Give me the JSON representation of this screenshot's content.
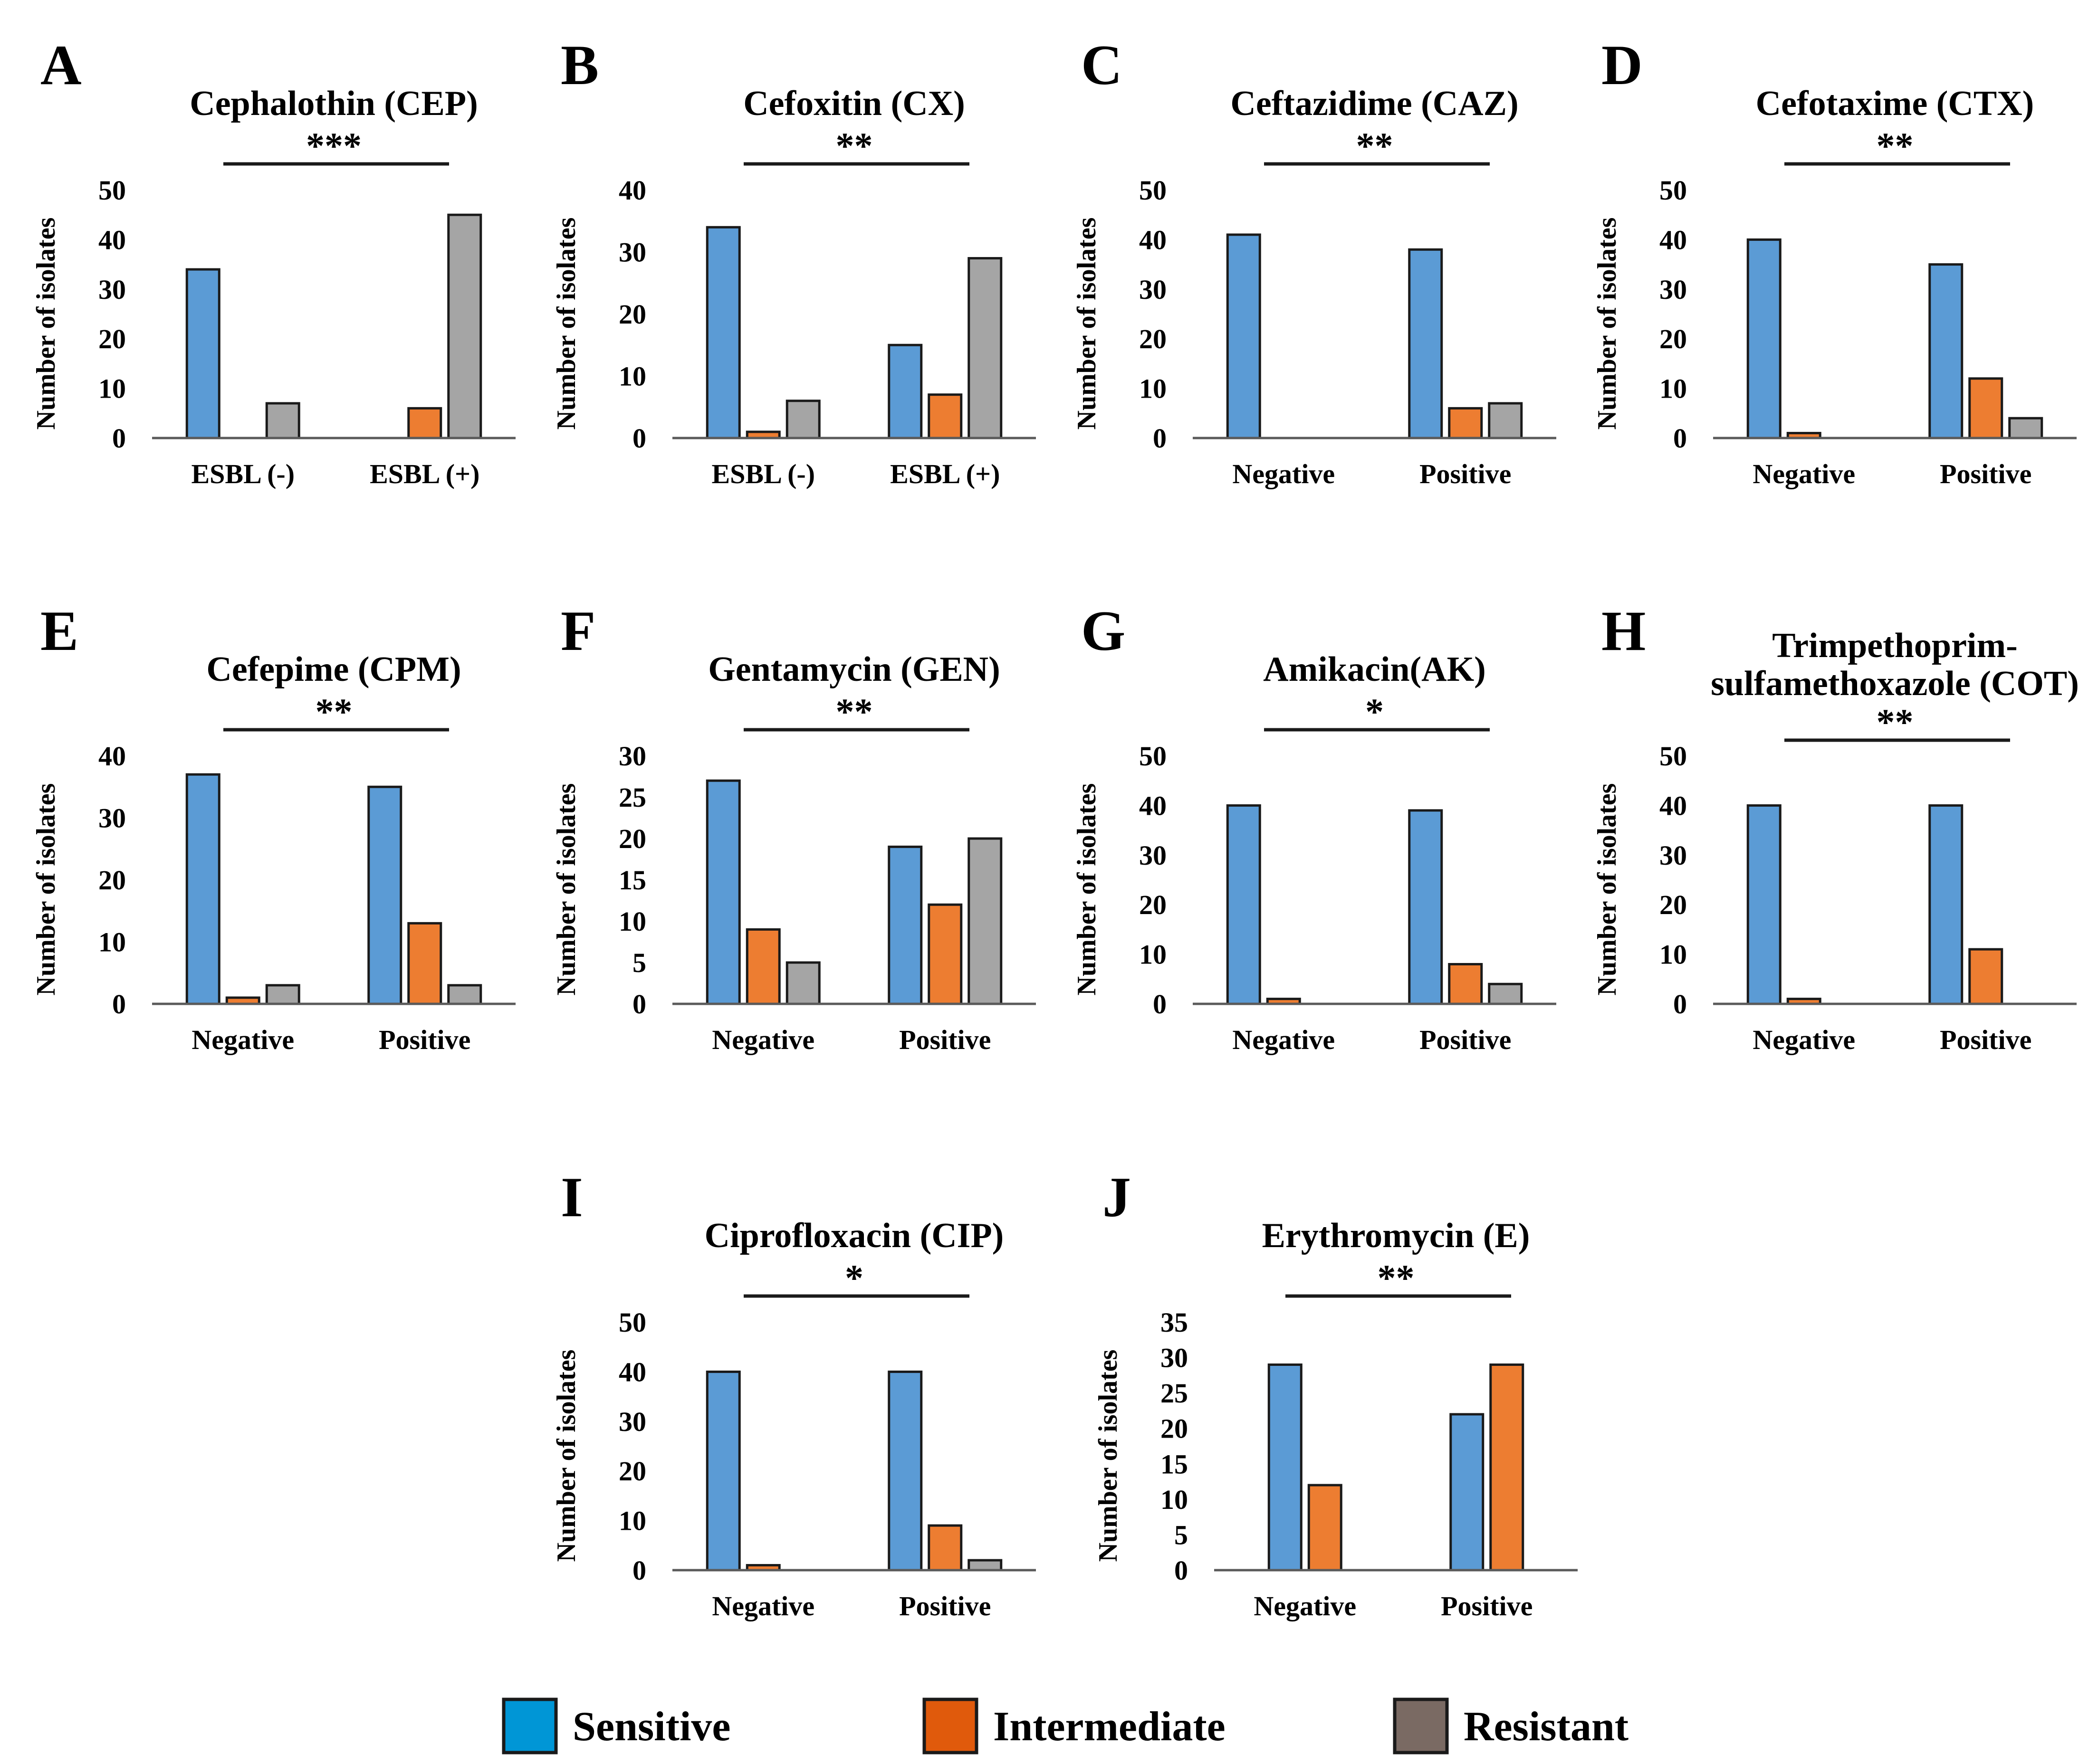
{
  "chart_data": [
    {
      "letter": "A",
      "title": [
        "Cephalothin (CEP)"
      ],
      "significance": "***",
      "type": "bar",
      "categories": [
        "ESBL (-)",
        "ESBL (+)"
      ],
      "ylabel": "Number of isolates",
      "ylim": [
        0,
        50
      ],
      "yticks": [
        0,
        10,
        20,
        30,
        40,
        50
      ],
      "series": [
        {
          "name": "Sensitive",
          "values": [
            34,
            0
          ]
        },
        {
          "name": "Intermediate",
          "values": [
            0,
            6
          ]
        },
        {
          "name": "Resistant",
          "values": [
            7,
            45
          ]
        }
      ]
    },
    {
      "letter": "B",
      "title": [
        "Cefoxitin (CX)"
      ],
      "significance": "**",
      "type": "bar",
      "categories": [
        "ESBL (-)",
        "ESBL (+)"
      ],
      "ylabel": "Number of isolates",
      "ylim": [
        0,
        40
      ],
      "yticks": [
        0,
        10,
        20,
        30,
        40
      ],
      "series": [
        {
          "name": "Sensitive",
          "values": [
            34,
            15
          ]
        },
        {
          "name": "Intermediate",
          "values": [
            1,
            7
          ]
        },
        {
          "name": "Resistant",
          "values": [
            6,
            29
          ]
        }
      ]
    },
    {
      "letter": "C",
      "title": [
        "Ceftazidime (CAZ)"
      ],
      "significance": "**",
      "type": "bar",
      "categories": [
        "Negative",
        "Positive"
      ],
      "ylabel": "Number of isolates",
      "ylim": [
        0,
        50
      ],
      "yticks": [
        0,
        10,
        20,
        30,
        40,
        50
      ],
      "series": [
        {
          "name": "Sensitive",
          "values": [
            41,
            38
          ]
        },
        {
          "name": "Intermediate",
          "values": [
            0,
            6
          ]
        },
        {
          "name": "Resistant",
          "values": [
            0,
            7
          ]
        }
      ]
    },
    {
      "letter": "D",
      "title": [
        "Cefotaxime (CTX)"
      ],
      "significance": "**",
      "type": "bar",
      "categories": [
        "Negative",
        "Positive"
      ],
      "ylabel": "Number of isolates",
      "ylim": [
        0,
        50
      ],
      "yticks": [
        0,
        10,
        20,
        30,
        40,
        50
      ],
      "series": [
        {
          "name": "Sensitive",
          "values": [
            40,
            35
          ]
        },
        {
          "name": "Intermediate",
          "values": [
            1,
            12
          ]
        },
        {
          "name": "Resistant",
          "values": [
            0,
            4
          ]
        }
      ]
    },
    {
      "letter": "E",
      "title": [
        "Cefepime (CPM)"
      ],
      "significance": "**",
      "type": "bar",
      "categories": [
        "Negative",
        "Positive"
      ],
      "ylabel": "Number of isolates",
      "ylim": [
        0,
        40
      ],
      "yticks": [
        0,
        10,
        20,
        30,
        40
      ],
      "series": [
        {
          "name": "Sensitive",
          "values": [
            37,
            35
          ]
        },
        {
          "name": "Intermediate",
          "values": [
            1,
            13
          ]
        },
        {
          "name": "Resistant",
          "values": [
            3,
            3
          ]
        }
      ]
    },
    {
      "letter": "F",
      "title": [
        "Gentamycin (GEN)"
      ],
      "significance": "**",
      "type": "bar",
      "categories": [
        "Negative",
        "Positive"
      ],
      "ylabel": "Number of isolates",
      "ylim": [
        0,
        30
      ],
      "yticks": [
        0,
        5,
        10,
        15,
        20,
        25,
        30
      ],
      "series": [
        {
          "name": "Sensitive",
          "values": [
            27,
            19
          ]
        },
        {
          "name": "Intermediate",
          "values": [
            9,
            12
          ]
        },
        {
          "name": "Resistant",
          "values": [
            5,
            20
          ]
        }
      ]
    },
    {
      "letter": "G",
      "title": [
        "Amikacin(AK)"
      ],
      "significance": "*",
      "type": "bar",
      "categories": [
        "Negative",
        "Positive"
      ],
      "ylabel": "Number of isolates",
      "ylim": [
        0,
        50
      ],
      "yticks": [
        0,
        10,
        20,
        30,
        40,
        50
      ],
      "series": [
        {
          "name": "Sensitive",
          "values": [
            40,
            39
          ]
        },
        {
          "name": "Intermediate",
          "values": [
            1,
            8
          ]
        },
        {
          "name": "Resistant",
          "values": [
            0,
            4
          ]
        }
      ]
    },
    {
      "letter": "H",
      "title": [
        "Trimpethoprim-",
        "sulfamethoxazole  (COT)"
      ],
      "significance": "**",
      "type": "bar",
      "categories": [
        "Negative",
        "Positive"
      ],
      "ylabel": "Number of isolates",
      "ylim": [
        0,
        50
      ],
      "yticks": [
        0,
        10,
        20,
        30,
        40,
        50
      ],
      "series": [
        {
          "name": "Sensitive",
          "values": [
            40,
            40
          ]
        },
        {
          "name": "Intermediate",
          "values": [
            1,
            11
          ]
        },
        {
          "name": "Resistant",
          "values": [
            0,
            0
          ]
        }
      ]
    },
    {
      "letter": "I",
      "title": [
        "Ciprofloxacin (CIP)"
      ],
      "significance": "*",
      "type": "bar",
      "categories": [
        "Negative",
        "Positive"
      ],
      "ylabel": "Number of isolates",
      "ylim": [
        0,
        50
      ],
      "yticks": [
        0,
        10,
        20,
        30,
        40,
        50
      ],
      "series": [
        {
          "name": "Sensitive",
          "values": [
            40,
            40
          ]
        },
        {
          "name": "Intermediate",
          "values": [
            1,
            9
          ]
        },
        {
          "name": "Resistant",
          "values": [
            0,
            2
          ]
        }
      ]
    },
    {
      "letter": "J",
      "title": [
        "Erythromycin (E)"
      ],
      "significance": "**",
      "type": "bar",
      "categories": [
        "Negative",
        "Positive"
      ],
      "ylabel": "Number of isolates",
      "ylim": [
        0,
        35
      ],
      "yticks": [
        0,
        5,
        10,
        15,
        20,
        25,
        30,
        35
      ],
      "series": [
        {
          "name": "Sensitive",
          "values": [
            29,
            22
          ]
        },
        {
          "name": "Intermediate",
          "values": [
            12,
            29
          ]
        }
      ]
    }
  ],
  "legend": [
    {
      "name": "Sensitive",
      "color": "#0096d6"
    },
    {
      "name": "Intermediate",
      "color": "#e05a0c"
    },
    {
      "name": "Resistant",
      "color": "#7a6a63"
    }
  ],
  "series_colors": {
    "Sensitive": "#5b9bd5",
    "Intermediate": "#ed7d31",
    "Resistant": "#a5a5a5"
  }
}
